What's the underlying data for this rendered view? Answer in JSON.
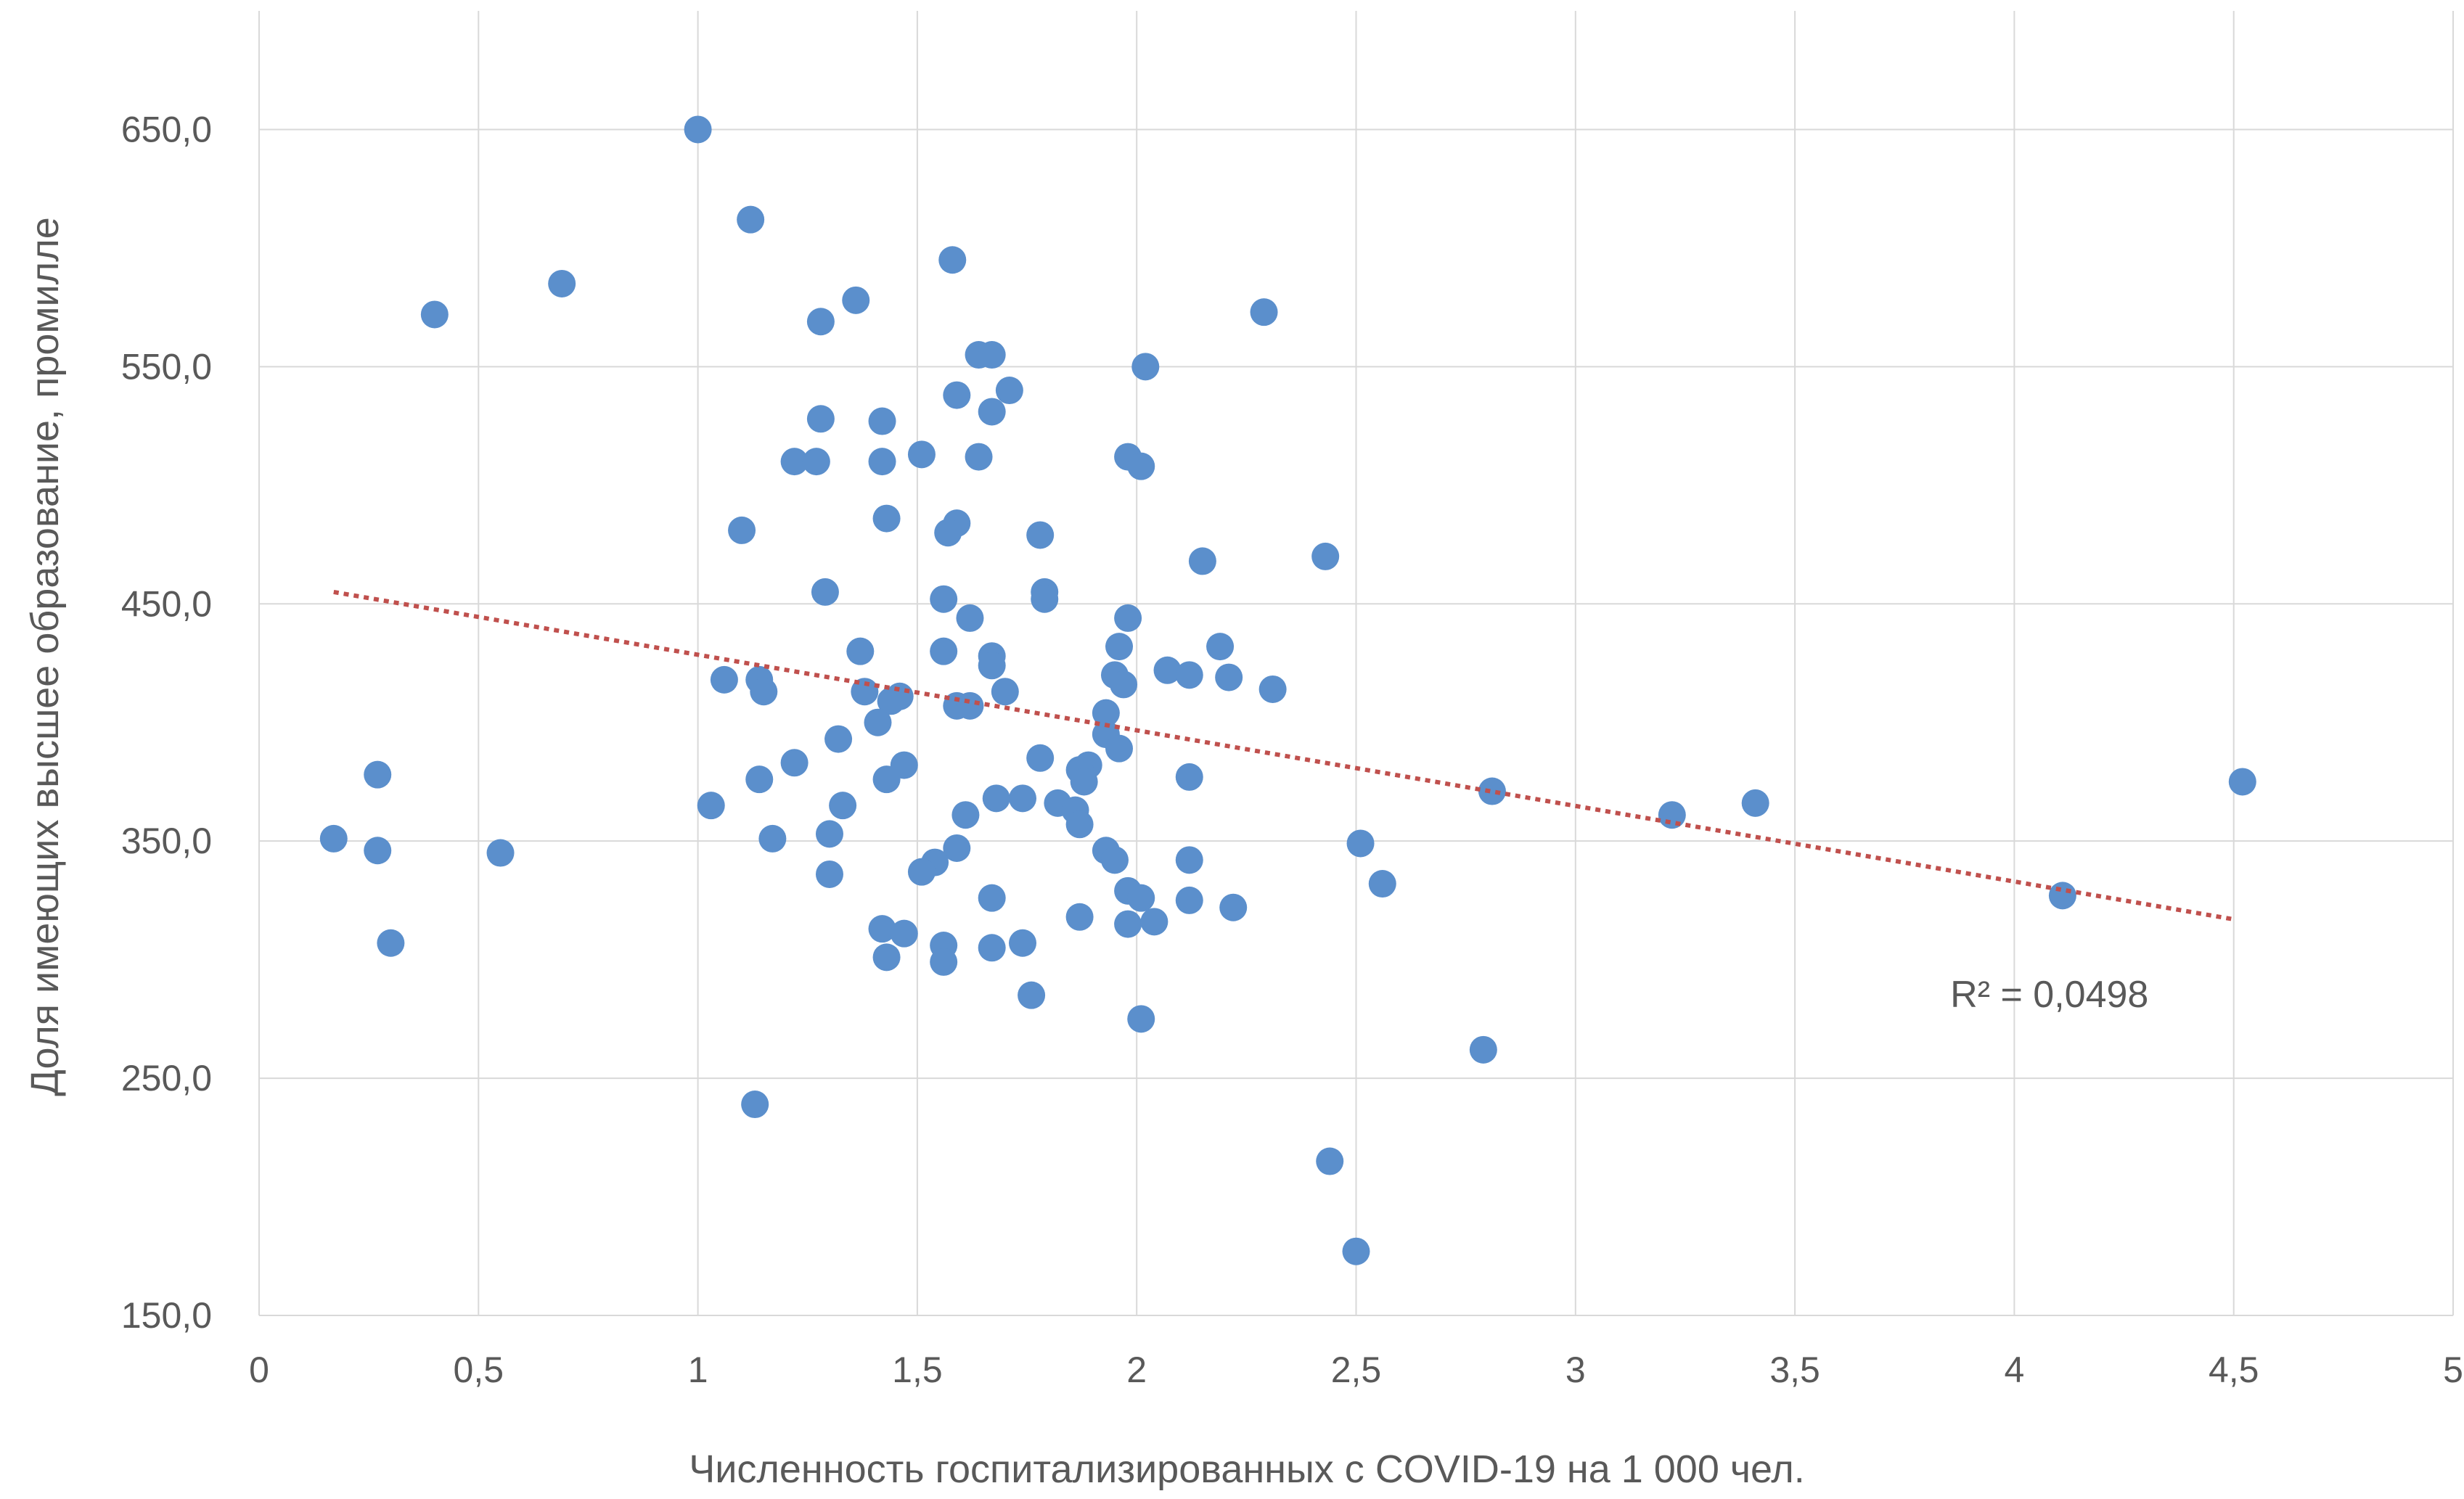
{
  "chart_data": {
    "type": "scatter",
    "title": "",
    "xlabel": "Численность госпитализированных с COVID-19 на 1 000 чел.",
    "ylabel": "Доля имеющих высшее  образование, промилле",
    "xlim": [
      0,
      5
    ],
    "ylim": [
      150,
      700
    ],
    "x_ticks": [
      {
        "value": 0,
        "label": "0"
      },
      {
        "value": 0.5,
        "label": "0,5"
      },
      {
        "value": 1,
        "label": "1"
      },
      {
        "value": 1.5,
        "label": "1,5"
      },
      {
        "value": 2,
        "label": "2"
      },
      {
        "value": 2.5,
        "label": "2,5"
      },
      {
        "value": 3,
        "label": "3"
      },
      {
        "value": 3.5,
        "label": "3,5"
      },
      {
        "value": 4,
        "label": "4"
      },
      {
        "value": 4.5,
        "label": "4,5"
      },
      {
        "value": 5,
        "label": "5"
      }
    ],
    "y_ticks": [
      {
        "value": 150,
        "label": "150,0"
      },
      {
        "value": 250,
        "label": "250,0"
      },
      {
        "value": 350,
        "label": "350,0"
      },
      {
        "value": 450,
        "label": "450,0"
      },
      {
        "value": 550,
        "label": "550,0"
      },
      {
        "value": 650,
        "label": "650,0"
      }
    ],
    "grid": true,
    "marker_color": "#5b8fcc",
    "trendline": {
      "kind": "linear",
      "from": [
        0.17,
        455
      ],
      "to": [
        4.5,
        317
      ],
      "color": "#c0504d",
      "style": "dotted",
      "r2_label": "R² = 0,0498",
      "r2_anchor": [
        4.08,
        280
      ]
    },
    "series": [
      {
        "points": [
          [
            1.0,
            650
          ],
          [
            1.12,
            612
          ],
          [
            1.58,
            595
          ],
          [
            0.69,
            585
          ],
          [
            1.36,
            578
          ],
          [
            0.4,
            572
          ],
          [
            2.29,
            573
          ],
          [
            1.28,
            569
          ],
          [
            1.64,
            555
          ],
          [
            1.67,
            555
          ],
          [
            2.02,
            550
          ],
          [
            1.71,
            540
          ],
          [
            1.59,
            538
          ],
          [
            1.67,
            531
          ],
          [
            1.28,
            528
          ],
          [
            1.42,
            527
          ],
          [
            1.51,
            513
          ],
          [
            1.64,
            512
          ],
          [
            1.98,
            512
          ],
          [
            1.22,
            510
          ],
          [
            1.27,
            510
          ],
          [
            1.42,
            510
          ],
          [
            2.01,
            508
          ],
          [
            1.43,
            486
          ],
          [
            1.59,
            484
          ],
          [
            1.57,
            480
          ],
          [
            1.1,
            481
          ],
          [
            1.78,
            479
          ],
          [
            2.43,
            470
          ],
          [
            2.15,
            468
          ],
          [
            1.29,
            455
          ],
          [
            1.79,
            455
          ],
          [
            1.79,
            452
          ],
          [
            1.56,
            452
          ],
          [
            1.62,
            444
          ],
          [
            1.98,
            444
          ],
          [
            1.96,
            432
          ],
          [
            2.19,
            432
          ],
          [
            1.37,
            430
          ],
          [
            1.56,
            430
          ],
          [
            1.67,
            428
          ],
          [
            1.67,
            424
          ],
          [
            2.07,
            422
          ],
          [
            2.12,
            420
          ],
          [
            1.95,
            420
          ],
          [
            2.21,
            419
          ],
          [
            1.06,
            418
          ],
          [
            1.14,
            418
          ],
          [
            1.97,
            416
          ],
          [
            1.15,
            413
          ],
          [
            1.38,
            413
          ],
          [
            1.46,
            411
          ],
          [
            1.7,
            413
          ],
          [
            2.31,
            414
          ],
          [
            1.44,
            409
          ],
          [
            1.59,
            407
          ],
          [
            1.62,
            407
          ],
          [
            1.41,
            400
          ],
          [
            1.93,
            404
          ],
          [
            1.93,
            395
          ],
          [
            1.32,
            393
          ],
          [
            1.96,
            389
          ],
          [
            1.78,
            385
          ],
          [
            1.22,
            383
          ],
          [
            1.89,
            382
          ],
          [
            1.87,
            380
          ],
          [
            1.88,
            375
          ],
          [
            1.47,
            382
          ],
          [
            1.14,
            376
          ],
          [
            1.43,
            376
          ],
          [
            2.12,
            377
          ],
          [
            4.52,
            375
          ],
          [
            2.81,
            371
          ],
          [
            1.03,
            365
          ],
          [
            1.33,
            365
          ],
          [
            1.68,
            368
          ],
          [
            1.74,
            368
          ],
          [
            1.82,
            366
          ],
          [
            1.86,
            363
          ],
          [
            1.61,
            361
          ],
          [
            1.87,
            357
          ],
          [
            3.22,
            361
          ],
          [
            3.41,
            366
          ],
          [
            1.3,
            353
          ],
          [
            1.17,
            351
          ],
          [
            0.17,
            351
          ],
          [
            0.27,
            346
          ],
          [
            0.55,
            345
          ],
          [
            1.59,
            347
          ],
          [
            1.93,
            346
          ],
          [
            1.95,
            342
          ],
          [
            2.51,
            349
          ],
          [
            1.54,
            341
          ],
          [
            2.12,
            342
          ],
          [
            1.51,
            337
          ],
          [
            1.3,
            336
          ],
          [
            2.56,
            332
          ],
          [
            1.98,
            329
          ],
          [
            1.67,
            326
          ],
          [
            2.01,
            326
          ],
          [
            2.12,
            325
          ],
          [
            2.22,
            322
          ],
          [
            4.11,
            327
          ],
          [
            1.87,
            318
          ],
          [
            1.98,
            315
          ],
          [
            2.04,
            316
          ],
          [
            1.42,
            313
          ],
          [
            1.47,
            311
          ],
          [
            1.74,
            307
          ],
          [
            1.56,
            306
          ],
          [
            1.67,
            305
          ],
          [
            0.3,
            307
          ],
          [
            1.43,
            301
          ],
          [
            1.56,
            299
          ],
          [
            1.76,
            285
          ],
          [
            2.01,
            275
          ],
          [
            2.79,
            262
          ],
          [
            1.13,
            239
          ],
          [
            2.44,
            215
          ],
          [
            2.5,
            177
          ],
          [
            0.27,
            378
          ]
        ]
      }
    ]
  }
}
